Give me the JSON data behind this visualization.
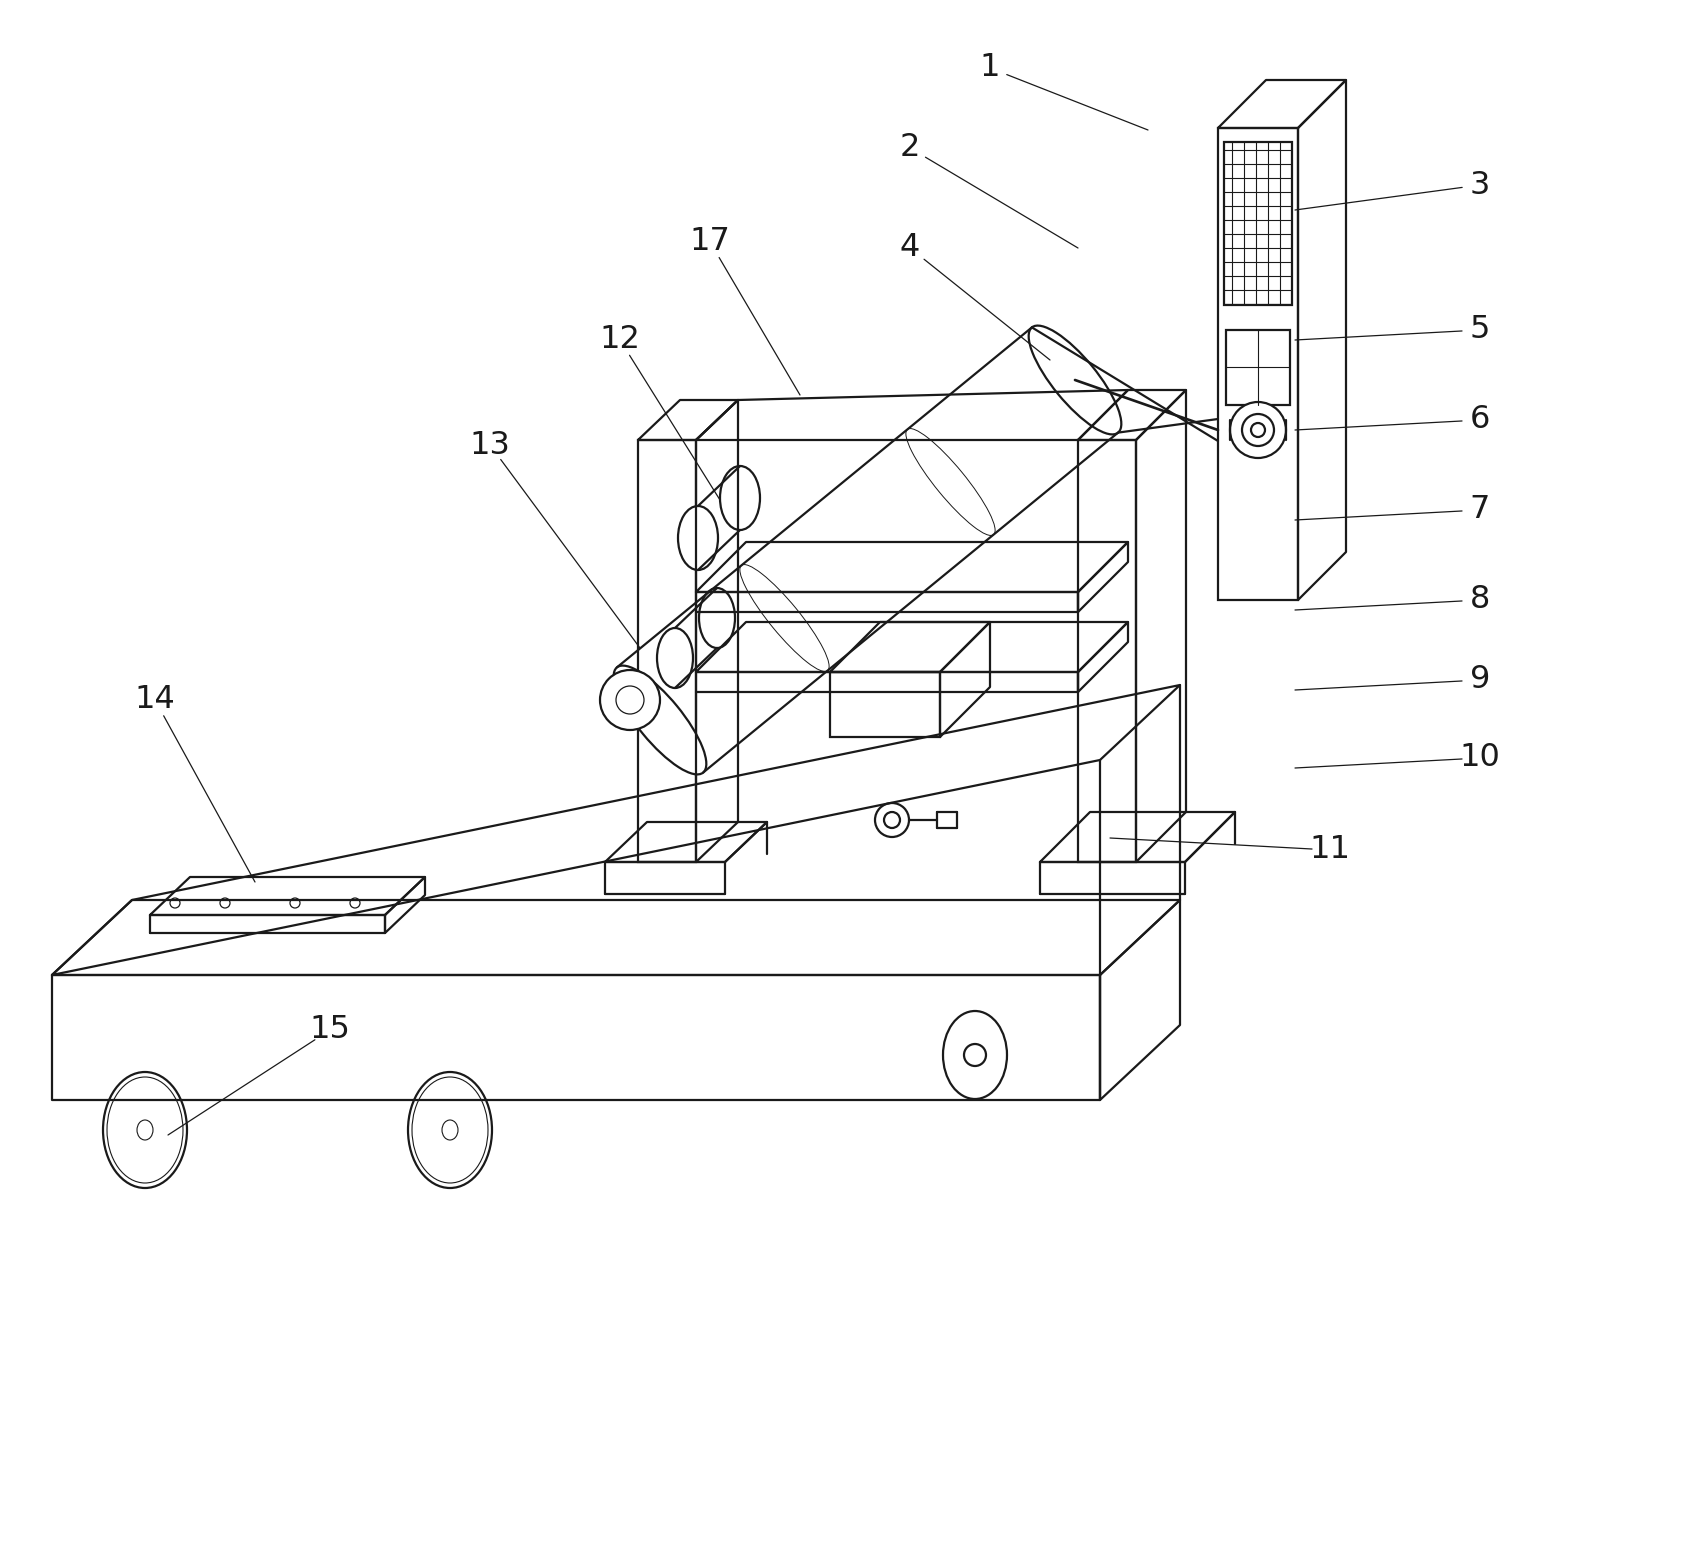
{
  "bg_color": "#ffffff",
  "line_color": "#1a1a1a",
  "lw": 1.6,
  "figsize": [
    16.91,
    15.64
  ],
  "dpi": 100,
  "labels": [
    [
      "1",
      990,
      68,
      1148,
      130
    ],
    [
      "2",
      910,
      148,
      1078,
      248
    ],
    [
      "3",
      1480,
      185,
      1295,
      210
    ],
    [
      "4",
      910,
      248,
      1050,
      360
    ],
    [
      "5",
      1480,
      330,
      1295,
      340
    ],
    [
      "6",
      1480,
      420,
      1295,
      430
    ],
    [
      "7",
      1480,
      510,
      1295,
      520
    ],
    [
      "8",
      1480,
      600,
      1295,
      610
    ],
    [
      "9",
      1480,
      680,
      1295,
      690
    ],
    [
      "10",
      1480,
      758,
      1295,
      768
    ],
    [
      "11",
      1330,
      850,
      1110,
      838
    ],
    [
      "12",
      620,
      340,
      720,
      500
    ],
    [
      "13",
      490,
      445,
      640,
      648
    ],
    [
      "14",
      155,
      700,
      255,
      882
    ],
    [
      "15",
      330,
      1030,
      168,
      1135
    ],
    [
      "17",
      710,
      242,
      800,
      395
    ]
  ]
}
